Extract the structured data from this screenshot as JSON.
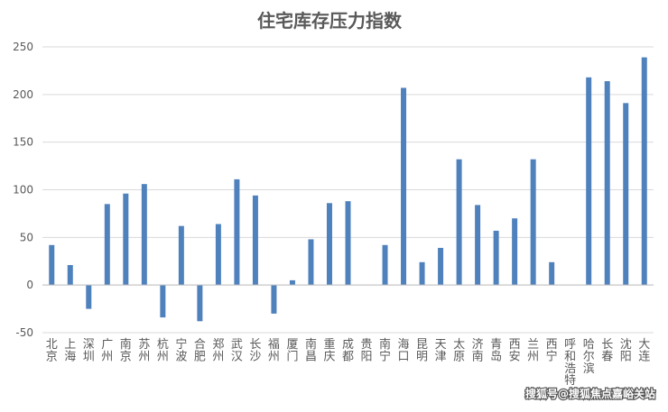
{
  "chart_data": {
    "type": "bar",
    "title": "住宅库存压力指数",
    "categories": [
      "北京",
      "上海",
      "深圳",
      "广州",
      "南京",
      "苏州",
      "杭州",
      "宁波",
      "合肥",
      "郑州",
      "武汉",
      "长沙",
      "福州",
      "厦门",
      "南昌",
      "重庆",
      "成都",
      "贵阳",
      "南宁",
      "海口",
      "昆明",
      "天津",
      "太原",
      "济南",
      "青岛",
      "西安",
      "兰州",
      "西宁",
      "呼和浩特",
      "哈尔滨",
      "长春",
      "沈阳",
      "大连"
    ],
    "series": [
      {
        "values": [
          42,
          21,
          -25,
          85,
          96,
          106,
          -34,
          62,
          -38,
          64,
          111,
          94,
          -30,
          5,
          48,
          86,
          88,
          null,
          42,
          207,
          24,
          39,
          132,
          84,
          57,
          70,
          132,
          24,
          null,
          218,
          214,
          191,
          239
        ]
      }
    ],
    "ylim": [
      -50,
      250
    ],
    "yticks": [
      -50,
      0,
      50,
      100,
      150,
      200,
      250
    ],
    "xlabel": "",
    "ylabel": "",
    "grid": true,
    "legend": "none",
    "bar_color": "#4F81BD",
    "grid_color": "#D9D9D9",
    "axis_color": "#BFBFBF"
  },
  "watermark": "搜狐号@搜狐焦点嘉峪关站"
}
